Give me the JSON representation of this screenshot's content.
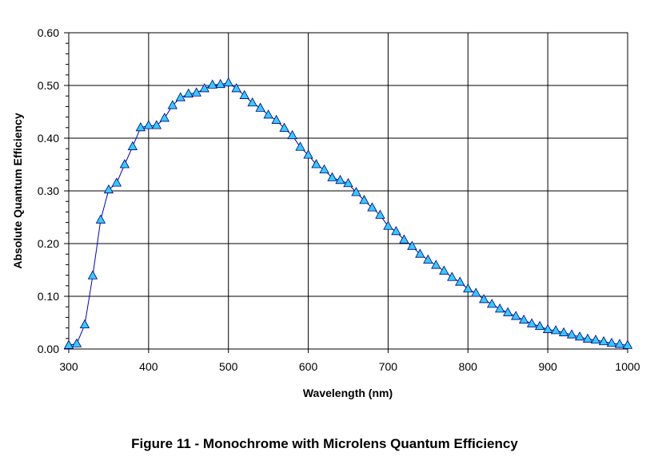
{
  "caption": "Figure 11 - Monochrome with Microlens Quantum Efficiency",
  "chart_data": {
    "type": "line",
    "title": "",
    "xlabel": "Wavelength (nm)",
    "ylabel": "Absolute Quantum Efficiency",
    "xlim": [
      300,
      1000
    ],
    "ylim": [
      0,
      0.6
    ],
    "xticks": [
      300,
      400,
      500,
      600,
      700,
      800,
      900,
      1000
    ],
    "xtick_labels": [
      "300",
      "400",
      "500",
      "600",
      "700",
      "800",
      "900",
      "1000"
    ],
    "yticks": [
      0,
      0.1,
      0.2,
      0.3,
      0.4,
      0.5,
      0.6
    ],
    "ytick_labels": [
      "0.00",
      "0.10",
      "0.20",
      "0.30",
      "0.40",
      "0.50",
      "0.60"
    ],
    "grid": true,
    "marker": "triangle",
    "colors": {
      "line": "#0000cc",
      "marker_fill": "#33ccff",
      "marker_stroke": "#000080",
      "grid": "#000000"
    },
    "series": [
      {
        "x": [
          300,
          310,
          320,
          330,
          340,
          350,
          360,
          370,
          380,
          390,
          400,
          410,
          420,
          430,
          440,
          450,
          460,
          470,
          480,
          490,
          500,
          510,
          520,
          530,
          540,
          550,
          560,
          570,
          580,
          590,
          600,
          610,
          620,
          630,
          640,
          650,
          660,
          670,
          680,
          690,
          700,
          710,
          720,
          730,
          740,
          750,
          760,
          770,
          780,
          790,
          800,
          810,
          820,
          830,
          840,
          850,
          860,
          870,
          880,
          890,
          900,
          910,
          920,
          930,
          940,
          950,
          960,
          970,
          980,
          990,
          1000
        ],
        "y": [
          0.007,
          0.01,
          0.046,
          0.139,
          0.245,
          0.302,
          0.315,
          0.35,
          0.384,
          0.42,
          0.424,
          0.424,
          0.438,
          0.462,
          0.477,
          0.484,
          0.486,
          0.494,
          0.501,
          0.502,
          0.505,
          0.494,
          0.481,
          0.467,
          0.457,
          0.444,
          0.434,
          0.419,
          0.405,
          0.383,
          0.368,
          0.35,
          0.34,
          0.325,
          0.32,
          0.314,
          0.297,
          0.282,
          0.268,
          0.254,
          0.233,
          0.223,
          0.207,
          0.195,
          0.18,
          0.169,
          0.159,
          0.148,
          0.136,
          0.127,
          0.114,
          0.106,
          0.094,
          0.085,
          0.076,
          0.069,
          0.062,
          0.055,
          0.048,
          0.043,
          0.037,
          0.035,
          0.031,
          0.027,
          0.023,
          0.019,
          0.017,
          0.014,
          0.011,
          0.009,
          0.007
        ]
      }
    ]
  }
}
